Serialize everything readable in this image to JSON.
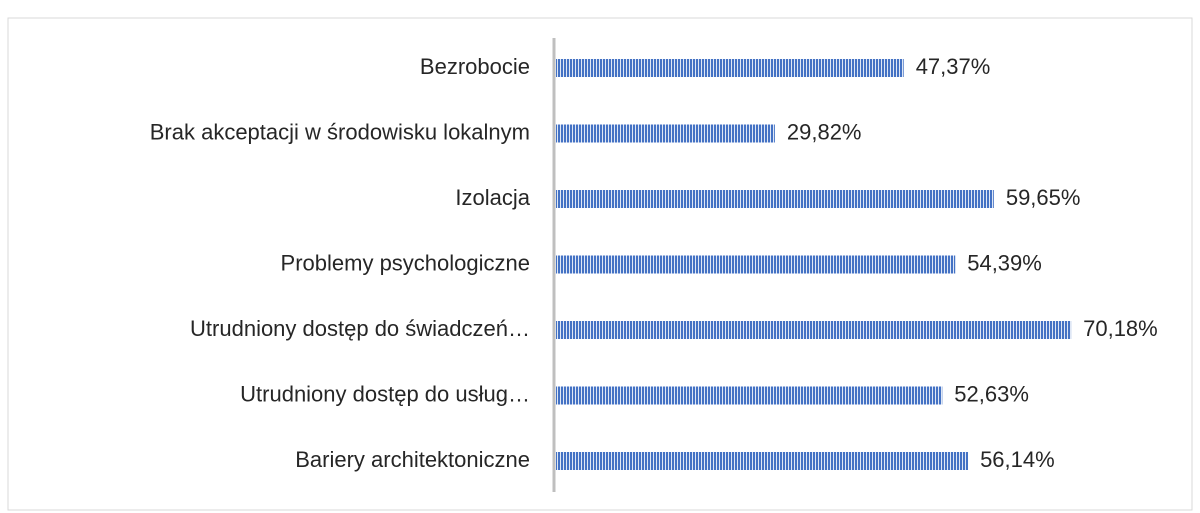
{
  "chart_data": {
    "type": "bar",
    "orientation": "horizontal",
    "categories": [
      "Bezrobocie",
      "Brak akceptacji w środowisku lokalnym",
      "Izolacja",
      "Problemy psychologiczne",
      "Utrudniony dostęp do świadczeń…",
      "Utrudniony dostęp do usług…",
      "Bariery architektoniczne"
    ],
    "values": [
      47.37,
      29.82,
      59.65,
      54.39,
      70.18,
      52.63,
      56.14
    ],
    "value_labels": [
      "47,37%",
      "29,82%",
      "59,65%",
      "54,39%",
      "70,18%",
      "52,63%",
      "56,14%"
    ],
    "color": "#4472c4"
  }
}
